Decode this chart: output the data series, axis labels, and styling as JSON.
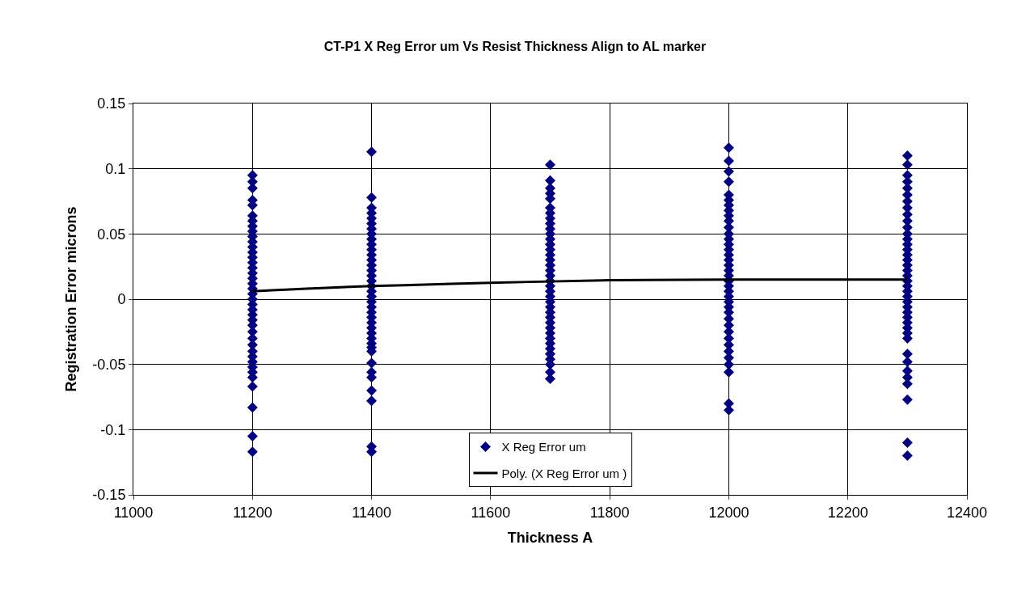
{
  "chart_data": {
    "type": "scatter",
    "title": "CT-P1 X Reg Error um Vs Resist Thickness Align to AL marker",
    "xlabel": "Thickness A",
    "ylabel": "Registration Error microns",
    "xlim": [
      11000,
      12400
    ],
    "xticks": [
      11000,
      11200,
      11400,
      11600,
      11800,
      12000,
      12200,
      12400
    ],
    "ylim": [
      -0.15,
      0.15
    ],
    "yticks": [
      -0.15,
      -0.1,
      -0.05,
      0,
      0.05,
      0.1,
      0.15
    ],
    "grid": true,
    "legend": "bottom",
    "marker": "diamond",
    "series": [
      {
        "name": "X Reg Error um",
        "color": "#000080",
        "x": [
          11200,
          11200,
          11200,
          11200,
          11200,
          11200,
          11200,
          11200,
          11200,
          11200,
          11200,
          11200,
          11200,
          11200,
          11200,
          11200,
          11200,
          11200,
          11200,
          11200,
          11200,
          11200,
          11200,
          11200,
          11200,
          11200,
          11200,
          11200,
          11200,
          11200,
          11200,
          11200,
          11200,
          11200,
          11200,
          11200,
          11200,
          11200,
          11200,
          11200
        ],
        "values": [
          0.095,
          0.09,
          0.085,
          0.076,
          0.072,
          0.064,
          0.06,
          0.056,
          0.052,
          0.048,
          0.044,
          0.04,
          0.036,
          0.032,
          0.028,
          0.024,
          0.02,
          0.016,
          0.012,
          0.008,
          0.004,
          0,
          -0.004,
          -0.008,
          -0.012,
          -0.016,
          -0.02,
          -0.025,
          -0.03,
          -0.035,
          -0.04,
          -0.044,
          -0.048,
          -0.052,
          -0.056,
          -0.06,
          -0.067,
          -0.083,
          -0.105,
          -0.117
        ]
      },
      {
        "color": "#000080",
        "x": [
          11400,
          11400,
          11400,
          11400,
          11400,
          11400,
          11400,
          11400,
          11400,
          11400,
          11400,
          11400,
          11400,
          11400,
          11400,
          11400,
          11400,
          11400,
          11400,
          11400,
          11400,
          11400,
          11400,
          11400,
          11400,
          11400,
          11400,
          11400,
          11400,
          11400,
          11400,
          11400,
          11400,
          11400,
          11400,
          11400,
          11400,
          11400
        ],
        "values": [
          0.113,
          0.078,
          0.07,
          0.066,
          0.062,
          0.058,
          0.054,
          0.05,
          0.046,
          0.042,
          0.038,
          0.034,
          0.03,
          0.026,
          0.022,
          0.018,
          0.014,
          0.01,
          0.006,
          0.002,
          -0.002,
          -0.006,
          -0.01,
          -0.014,
          -0.018,
          -0.022,
          -0.026,
          -0.03,
          -0.034,
          -0.04,
          -0.049,
          -0.056,
          -0.06,
          -0.07,
          -0.078,
          -0.113,
          -0.117,
          -0.037
        ]
      },
      {
        "color": "#000080",
        "x": [
          11700,
          11700,
          11700,
          11700,
          11700,
          11700,
          11700,
          11700,
          11700,
          11700,
          11700,
          11700,
          11700,
          11700,
          11700,
          11700,
          11700,
          11700,
          11700,
          11700,
          11700,
          11700,
          11700,
          11700,
          11700,
          11700,
          11700,
          11700,
          11700,
          11700,
          11700,
          11700,
          11700,
          11700,
          11700,
          11700,
          11700,
          11700
        ],
        "values": [
          0.103,
          0.091,
          0.085,
          0.081,
          0.077,
          0.07,
          0.066,
          0.062,
          0.058,
          0.054,
          0.05,
          0.046,
          0.042,
          0.038,
          0.034,
          0.03,
          0.026,
          0.022,
          0.018,
          0.014,
          0.01,
          0.006,
          0.002,
          -0.002,
          -0.006,
          -0.01,
          -0.014,
          -0.018,
          -0.022,
          -0.026,
          -0.03,
          -0.034,
          -0.038,
          -0.042,
          -0.046,
          -0.05,
          -0.056,
          -0.061
        ]
      },
      {
        "color": "#000080",
        "x": [
          12000,
          12000,
          12000,
          12000,
          12000,
          12000,
          12000,
          12000,
          12000,
          12000,
          12000,
          12000,
          12000,
          12000,
          12000,
          12000,
          12000,
          12000,
          12000,
          12000,
          12000,
          12000,
          12000,
          12000,
          12000,
          12000,
          12000,
          12000,
          12000,
          12000,
          12000,
          12000,
          12000,
          12000,
          12000,
          12000,
          12000,
          12000
        ],
        "values": [
          0.116,
          0.106,
          0.098,
          0.09,
          0.08,
          0.076,
          0.072,
          0.068,
          0.064,
          0.06,
          0.055,
          0.05,
          0.046,
          0.042,
          0.038,
          0.034,
          0.03,
          0.026,
          0.022,
          0.018,
          0.014,
          0.01,
          0.006,
          0.002,
          -0.002,
          -0.006,
          -0.01,
          -0.015,
          -0.02,
          -0.025,
          -0.03,
          -0.035,
          -0.04,
          -0.045,
          -0.05,
          -0.056,
          -0.08,
          -0.085
        ]
      },
      {
        "color": "#000080",
        "x": [
          12300,
          12300,
          12300,
          12300,
          12300,
          12300,
          12300,
          12300,
          12300,
          12300,
          12300,
          12300,
          12300,
          12300,
          12300,
          12300,
          12300,
          12300,
          12300,
          12300,
          12300,
          12300,
          12300,
          12300,
          12300,
          12300,
          12300,
          12300,
          12300,
          12300,
          12300,
          12300,
          12300,
          12300,
          12300,
          12300,
          12300,
          12300,
          12300,
          12300
        ],
        "values": [
          0.11,
          0.103,
          0.095,
          0.09,
          0.085,
          0.08,
          0.075,
          0.07,
          0.065,
          0.06,
          0.055,
          0.05,
          0.046,
          0.042,
          0.038,
          0.034,
          0.03,
          0.026,
          0.022,
          0.018,
          0.014,
          0.01,
          0.006,
          0.002,
          -0.002,
          -0.006,
          -0.01,
          -0.014,
          -0.018,
          -0.022,
          -0.026,
          -0.03,
          -0.042,
          -0.048,
          -0.055,
          -0.06,
          -0.065,
          -0.077,
          -0.11,
          -0.12
        ]
      },
      {
        "name": "Poly. (X Reg Error um )",
        "type": "line",
        "color": "#000000",
        "marker": "none",
        "x": [
          11200,
          11400,
          11600,
          11800,
          12000,
          12300
        ],
        "values": [
          0.006,
          0.01,
          0.0125,
          0.0145,
          0.015,
          0.015
        ]
      }
    ]
  }
}
